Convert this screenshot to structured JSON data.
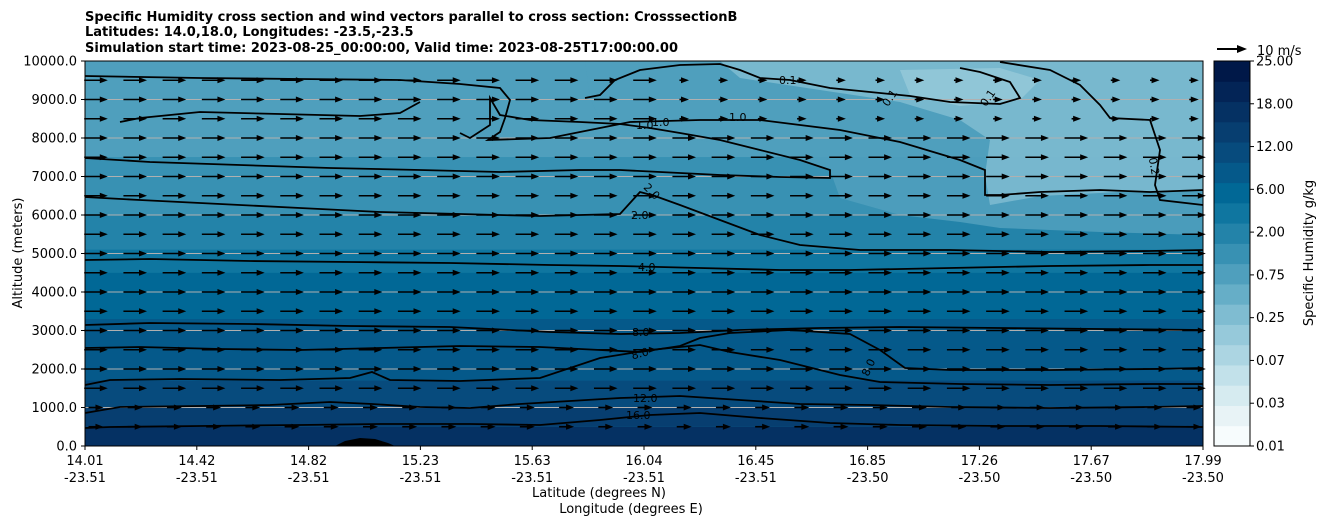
{
  "chart_data": {
    "type": "heatmap",
    "title_lines": [
      "Specific Humidity cross section and wind vectors parallel to cross section: CrosssectionB",
      "Latitudes: 14.0,18.0, Longitudes: -23.5,-23.5",
      "Simulation start time: 2023-08-25_00:00:00, Valid time: 2023-08-25T17:00:00.00"
    ],
    "ylabel": "Altitude (meters)",
    "xlabel_lines": [
      "Latitude (degrees N)",
      "Longitude (degrees E)"
    ],
    "ylim": [
      0,
      10000
    ],
    "y_ticks": [
      "0.0",
      "1000.0",
      "2000.0",
      "3000.0",
      "4000.0",
      "5000.0",
      "6000.0",
      "7000.0",
      "8000.0",
      "9000.0",
      "10000.0"
    ],
    "x_ticks": [
      {
        "lat": "14.01",
        "lon": "-23.51"
      },
      {
        "lat": "14.42",
        "lon": "-23.51"
      },
      {
        "lat": "14.82",
        "lon": "-23.51"
      },
      {
        "lat": "15.23",
        "lon": "-23.51"
      },
      {
        "lat": "15.63",
        "lon": "-23.51"
      },
      {
        "lat": "16.04",
        "lon": "-23.51"
      },
      {
        "lat": "16.45",
        "lon": "-23.51"
      },
      {
        "lat": "16.85",
        "lon": "-23.50"
      },
      {
        "lat": "17.26",
        "lon": "-23.50"
      },
      {
        "lat": "17.67",
        "lon": "-23.50"
      },
      {
        "lat": "17.99",
        "lon": "-23.50"
      }
    ],
    "grid": "horizontal",
    "colorbar": {
      "label": "Specific Humidity g/kg",
      "tick_labels": [
        "0.01",
        "0.03",
        "0.07",
        "0.25",
        "0.75",
        "2.00",
        "6.00",
        "12.00",
        "18.00",
        "25.00"
      ],
      "levels": [
        0.01,
        0.02,
        0.03,
        0.05,
        0.07,
        0.1,
        0.25,
        0.5,
        0.75,
        1,
        2,
        4,
        6,
        8,
        12,
        16,
        18,
        20,
        25
      ],
      "colors": [
        "#f7fcfd",
        "#e8f3f6",
        "#d6ebf0",
        "#c2e1ea",
        "#acd5e2",
        "#96c9da",
        "#7fbcd1",
        "#66aec7",
        "#4f9fbd",
        "#3891b3",
        "#2383a9",
        "#0f76a0",
        "#016896",
        "#05598a",
        "#074b7d",
        "#073e70",
        "#053163",
        "#032456",
        "#001848"
      ]
    },
    "contour_labels": [
      "0.1",
      "0.1",
      "0.1",
      "0.2",
      "1.0",
      "1.0",
      "1.0",
      "2.0",
      "2.0",
      "4.0",
      "8.0",
      "8.0",
      "8.0",
      "12.0",
      "16.0"
    ],
    "wind_key": {
      "label": "10 m/s",
      "speed": 10
    },
    "wind_vectors": {
      "u_ms": 8,
      "rows_m": [
        500,
        1000,
        1500,
        2000,
        2500,
        3000,
        3500,
        4000,
        4500,
        5000,
        5500,
        6000,
        6500,
        7000,
        7500,
        8000,
        8500,
        9000,
        9500
      ]
    },
    "humidity_bands_gkg": [
      {
        "z_bottom": 0,
        "z_top": 500,
        "value": 18
      },
      {
        "z_bottom": 500,
        "z_top": 1000,
        "value": 16
      },
      {
        "z_bottom": 1000,
        "z_top": 1700,
        "value": 12
      },
      {
        "z_bottom": 1700,
        "z_top": 2700,
        "value": 10
      },
      {
        "z_bottom": 2700,
        "z_top": 3300,
        "value": 8
      },
      {
        "z_bottom": 3300,
        "z_top": 4500,
        "value": 6
      },
      {
        "z_bottom": 4500,
        "z_top": 5100,
        "value": 4
      },
      {
        "z_bottom": 5100,
        "z_top": 6000,
        "value": 3
      },
      {
        "z_bottom": 6000,
        "z_top": 7500,
        "value": 1.5
      },
      {
        "z_bottom": 7500,
        "z_top": 10000,
        "value": 0.9
      }
    ]
  }
}
